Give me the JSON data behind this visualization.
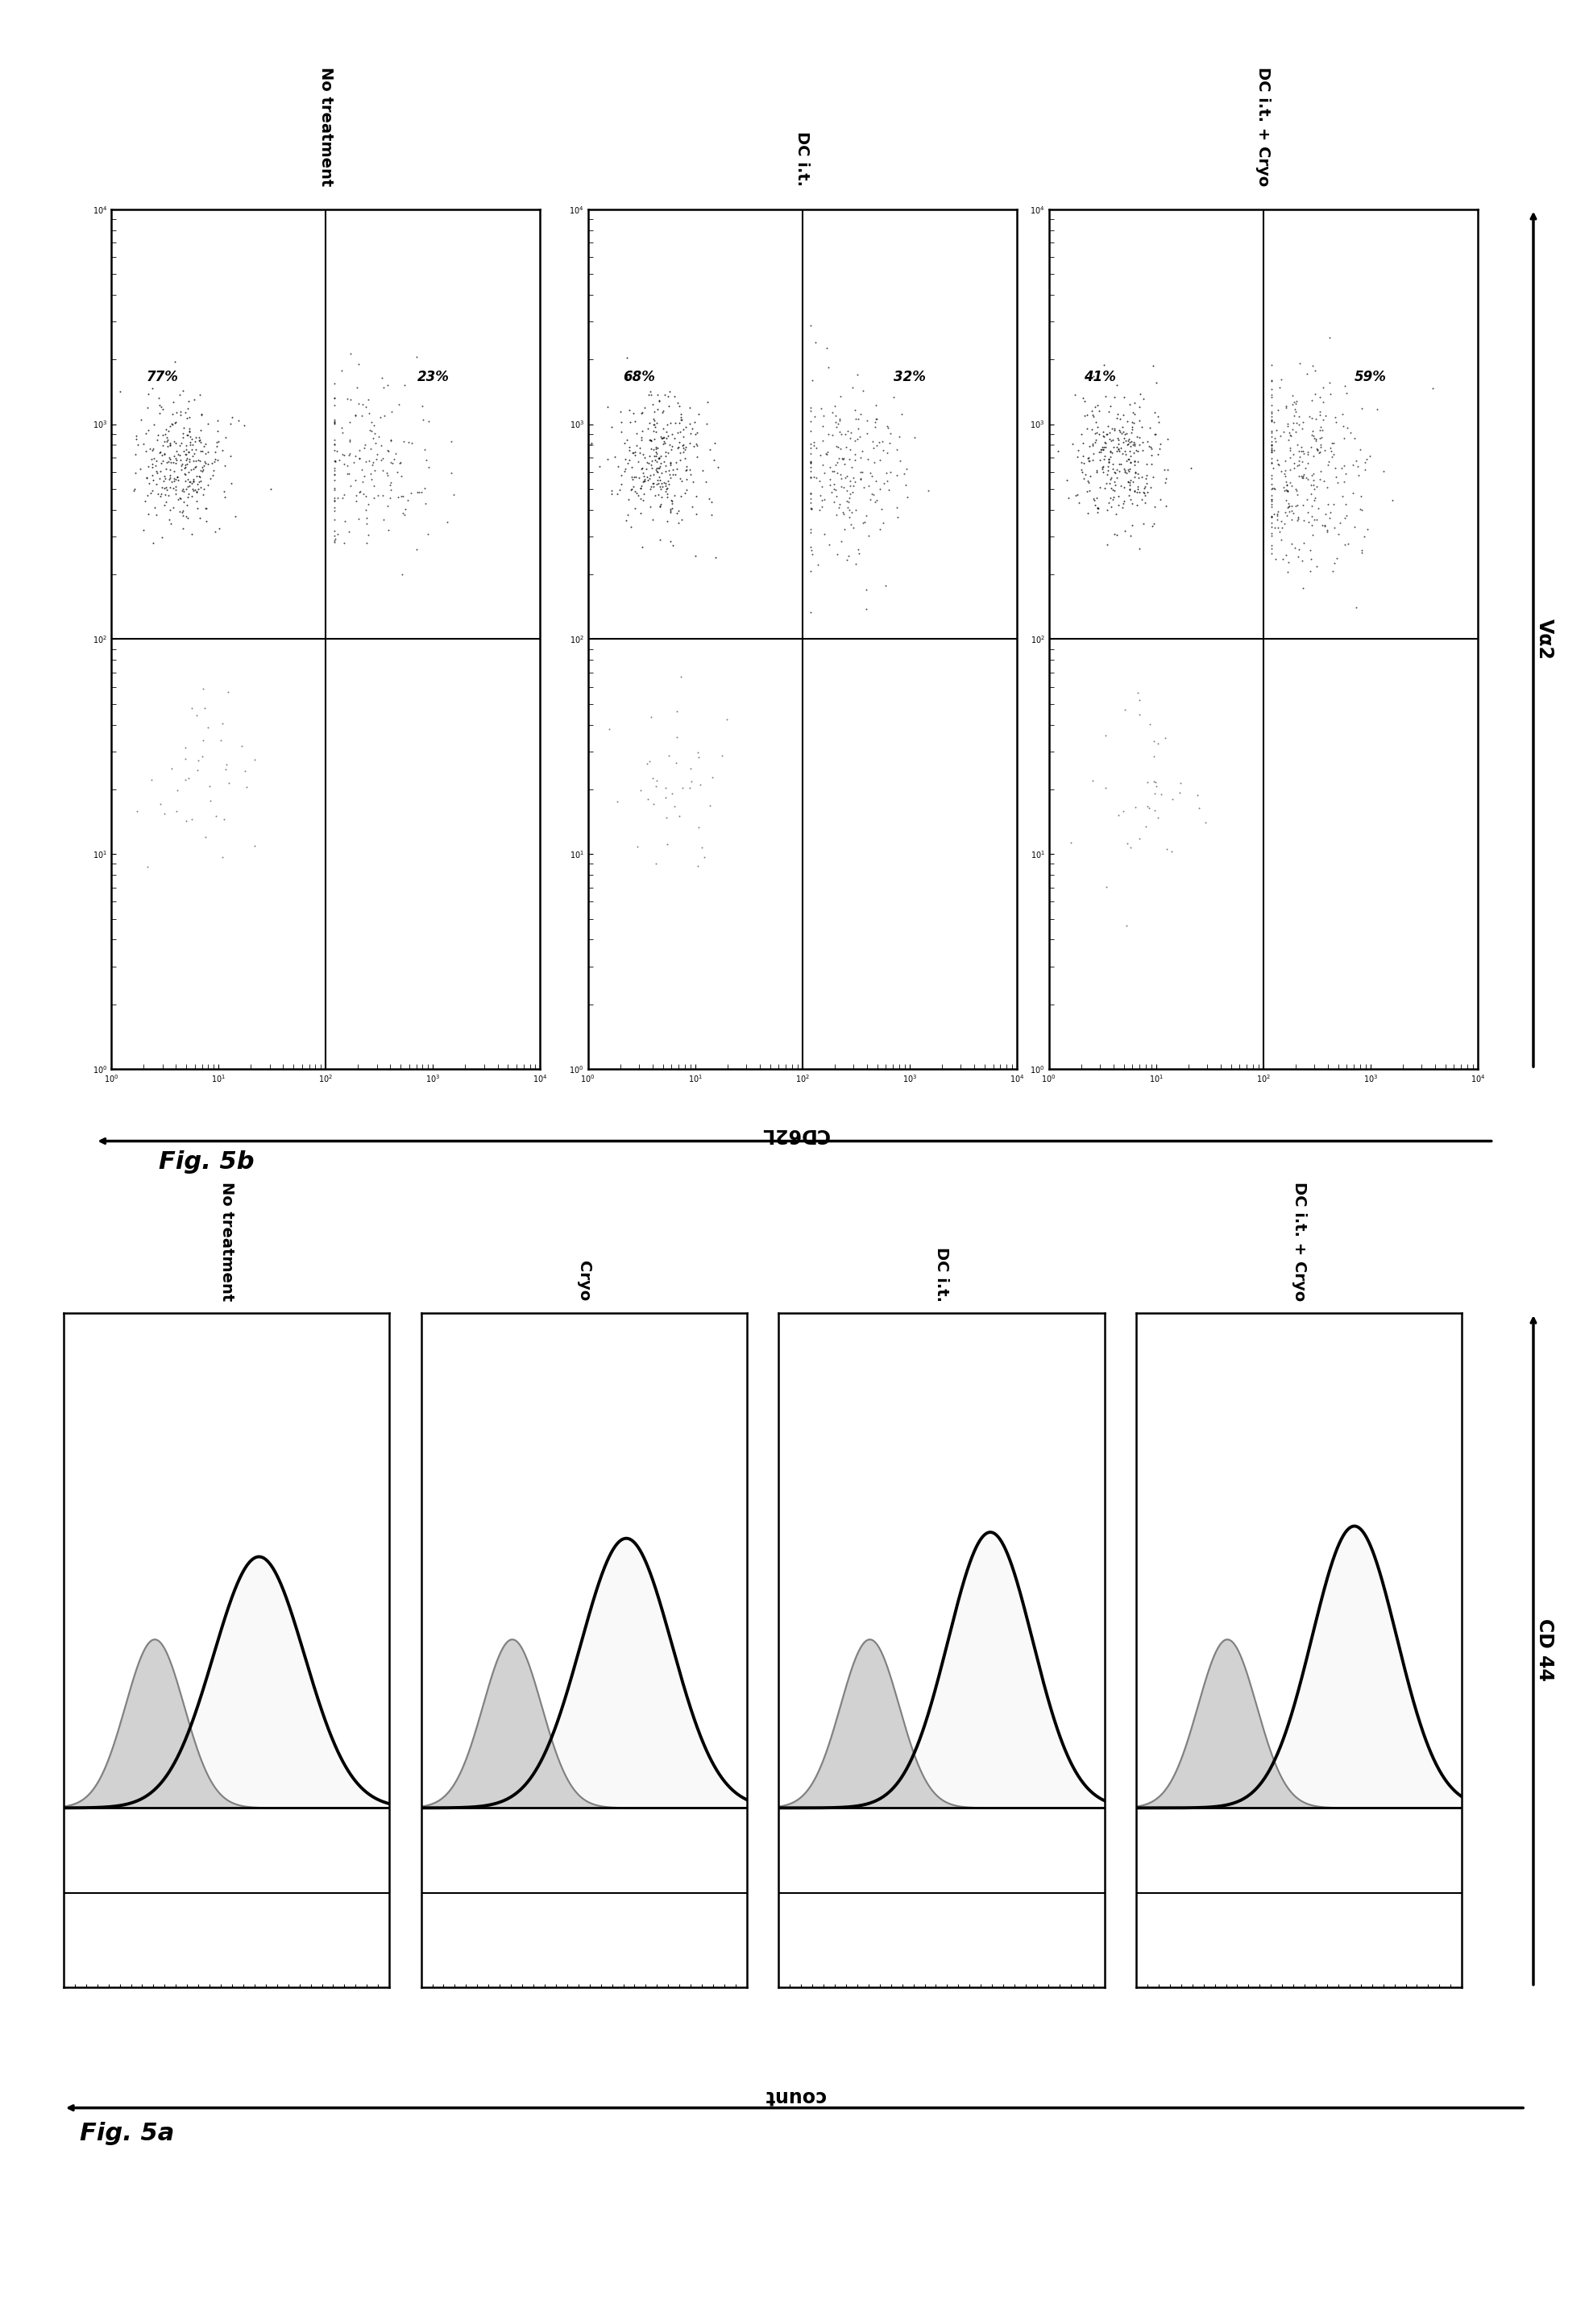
{
  "fig5a_labels": [
    "No treatment",
    "Cryo",
    "DC i.t.",
    "DC i.t. + Cryo"
  ],
  "fig5b_labels": [
    "No treatment",
    "DC i.t.",
    "DC i.t. + Cryo"
  ],
  "fig5b_percentages": [
    {
      "ul": "77%",
      "ur": "23%"
    },
    {
      "ul": "68%",
      "ur": "32%"
    },
    {
      "ul": "41%",
      "ur": "59%"
    }
  ],
  "fig5a_label": "Fig. 5a",
  "fig5b_label": "Fig. 5b",
  "xaxis_label_5a": "count",
  "yaxis_label_5a": "CD 44",
  "xaxis_label_5b": "CD62L",
  "yaxis_label_5b": "Vα2",
  "bg_color": "#ffffff",
  "dot_color": "#000000"
}
